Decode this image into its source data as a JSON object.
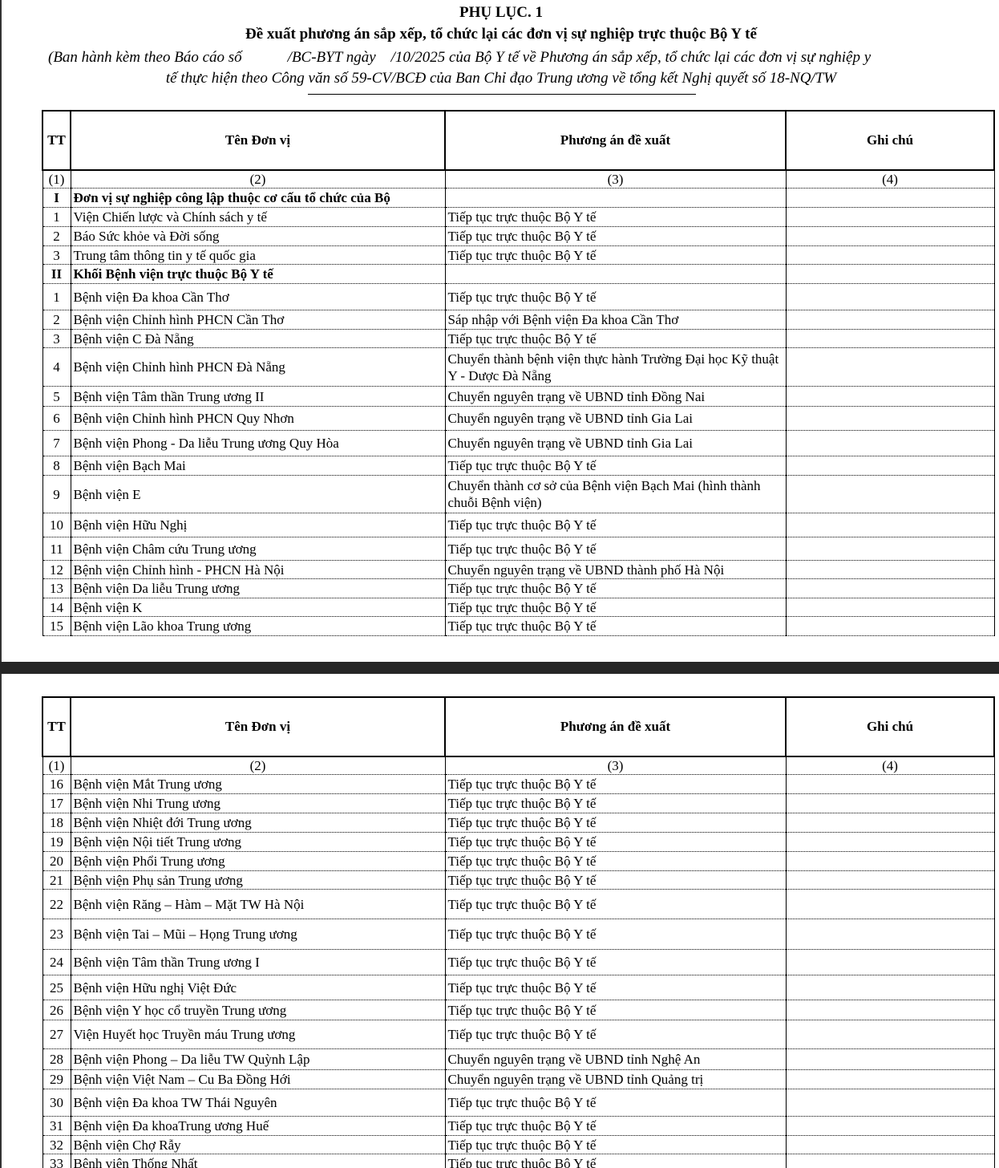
{
  "doc": {
    "title": "PHỤ LỤC. 1",
    "subtitle": "Đề xuất phương án sắp xếp, tổ chức lại các đơn vị sự nghiệp trực thuộc Bộ Y tế",
    "note_line1": "(Ban hành kèm theo Báo cáo số            /BC-BYT ngày    /10/2025 của Bộ Y tế về Phương án sắp xếp, tổ chức lại các đơn vị sự nghiệp y",
    "note_line2": "tế thực hiện theo Công văn số 59-CV/BCĐ của Ban Chỉ đạo Trung ương về tổng kết Nghị quyết số 18-NQ/TW"
  },
  "headers": [
    "TT",
    "Tên Đơn vị",
    "Phương án đề xuất",
    "Ghi chú"
  ],
  "col_numbers": [
    "(1)",
    "(2)",
    "(3)",
    "(4)"
  ],
  "page1_rows": [
    [
      "I",
      "Đơn vị sự nghiệp công lập thuộc cơ cấu tổ chức của Bộ",
      "",
      ""
    ],
    [
      "1",
      "Viện Chiến lược và Chính sách y tế",
      "Tiếp tục trực thuộc Bộ Y tế",
      ""
    ],
    [
      "2",
      "Báo Sức khỏe và Đời sống",
      "Tiếp tục trực thuộc Bộ Y tế",
      ""
    ],
    [
      "3",
      "Trung tâm thông tin y tế quốc gia",
      "Tiếp tục trực thuộc Bộ Y tế",
      ""
    ],
    [
      "II",
      "Khối Bệnh viện trực thuộc Bộ Y tế",
      "",
      ""
    ],
    [
      "1",
      "Bệnh viện Đa khoa Cần Thơ",
      "Tiếp tục trực thuộc Bộ Y tế",
      ""
    ],
    [
      "2",
      "Bệnh viện Chỉnh hình PHCN Cần Thơ",
      "Sáp nhập với Bệnh viện Đa khoa Cần Thơ",
      ""
    ],
    [
      "3",
      "Bệnh viện C Đà Nẵng",
      "Tiếp tục trực thuộc Bộ Y tế",
      ""
    ],
    [
      "4",
      "Bệnh viện Chỉnh hình PHCN Đà Nẵng",
      "Chuyển thành bệnh viện thực hành Trường Đại học Kỹ thuật Y - Dược Đà Nẵng",
      ""
    ],
    [
      "5",
      "Bệnh viện Tâm thần Trung ương II",
      "Chuyển nguyên trạng về UBND tỉnh Đồng Nai",
      ""
    ],
    [
      "6",
      "Bệnh viện Chỉnh hình PHCN Quy Nhơn",
      "Chuyển nguyên trạng về UBND tỉnh Gia Lai",
      ""
    ],
    [
      "7",
      "Bệnh viện Phong - Da liễu Trung ương Quy Hòa",
      "Chuyển nguyên trạng về UBND tỉnh Gia Lai",
      ""
    ],
    [
      "8",
      "Bệnh viện Bạch Mai",
      "Tiếp tục trực thuộc Bộ Y tế",
      ""
    ],
    [
      "9",
      "Bệnh viện E",
      "Chuyển thành cơ sở của Bệnh viện Bạch Mai (hình thành chuỗi Bệnh viện)",
      ""
    ],
    [
      "10",
      "Bệnh viện Hữu Nghị",
      "Tiếp tục trực thuộc Bộ Y tế",
      ""
    ],
    [
      "11",
      "Bệnh viện Châm cứu Trung ương",
      "Tiếp tục trực thuộc Bộ Y tế",
      ""
    ],
    [
      "12",
      "Bệnh viện Chỉnh hình - PHCN Hà Nội",
      "Chuyển nguyên trạng về UBND thành phố Hà Nội",
      ""
    ],
    [
      "13",
      "Bệnh viện Da liễu Trung ương",
      "Tiếp tục trực thuộc Bộ Y tế",
      ""
    ],
    [
      "14",
      "Bệnh viện K",
      "Tiếp tục trực thuộc Bộ Y tế",
      ""
    ],
    [
      "15",
      "Bệnh viện Lão khoa Trung ương",
      "Tiếp tục trực thuộc Bộ Y tế",
      ""
    ]
  ],
  "page2_rows": [
    [
      "16",
      "Bệnh viện Mắt Trung ương",
      "Tiếp tục trực thuộc Bộ Y tế",
      ""
    ],
    [
      "17",
      "Bệnh viện Nhi Trung ương",
      "Tiếp tục trực thuộc Bộ Y tế",
      ""
    ],
    [
      "18",
      "Bệnh viện Nhiệt đới Trung ương",
      "Tiếp tục trực thuộc Bộ Y tế",
      ""
    ],
    [
      "19",
      "Bệnh viện Nội tiết Trung ương",
      "Tiếp tục trực thuộc Bộ Y tế",
      ""
    ],
    [
      "20",
      "Bệnh viện Phổi Trung ương",
      "Tiếp tục trực thuộc Bộ Y tế",
      ""
    ],
    [
      "21",
      "Bệnh viện Phụ sản Trung ương",
      "Tiếp tục trực thuộc Bộ Y tế",
      ""
    ],
    [
      "22",
      "Bệnh viện Răng – Hàm – Mặt TW Hà Nội",
      "Tiếp tục trực thuộc Bộ Y tế",
      ""
    ],
    [
      "23",
      "Bệnh viện Tai – Mũi – Họng Trung ương",
      "Tiếp tục trực thuộc Bộ Y tế",
      ""
    ],
    [
      "24",
      "Bệnh viện Tâm thần Trung ương I",
      "Tiếp tục trực thuộc Bộ Y tế",
      ""
    ],
    [
      "25",
      "Bệnh viện Hữu nghị Việt Đức",
      "Tiếp tục trực thuộc Bộ Y tế",
      ""
    ],
    [
      "26",
      "Bệnh viện Y học cổ truyền Trung ương",
      "Tiếp tục trực thuộc Bộ Y tế",
      ""
    ],
    [
      "27",
      "Viện Huyết học Truyền máu Trung ương",
      "Tiếp tục trực thuộc Bộ Y tế",
      ""
    ],
    [
      "28",
      "Bệnh viện Phong – Da liễu TW Quỳnh Lập",
      "Chuyển nguyên trạng về UBND tỉnh Nghệ An",
      ""
    ],
    [
      "29",
      "Bệnh viện Việt Nam – Cu Ba Đồng Hới",
      "Chuyển nguyên trạng về UBND tỉnh Quảng trị",
      ""
    ],
    [
      "30",
      "Bệnh viện Đa khoa TW Thái Nguyên",
      "Tiếp tục trực thuộc Bộ Y tế",
      ""
    ],
    [
      "31",
      "Bệnh viện Đa khoaTrung ương Huế",
      "Tiếp tục trực thuộc Bộ Y tế",
      ""
    ],
    [
      "32",
      "Bệnh viện Chợ Rẫy",
      "Tiếp tục trực thuộc Bộ Y tế",
      ""
    ],
    [
      "33",
      "Bệnh viện Thống Nhất",
      "Tiếp tục trực thuộc Bộ Y tế",
      ""
    ]
  ]
}
